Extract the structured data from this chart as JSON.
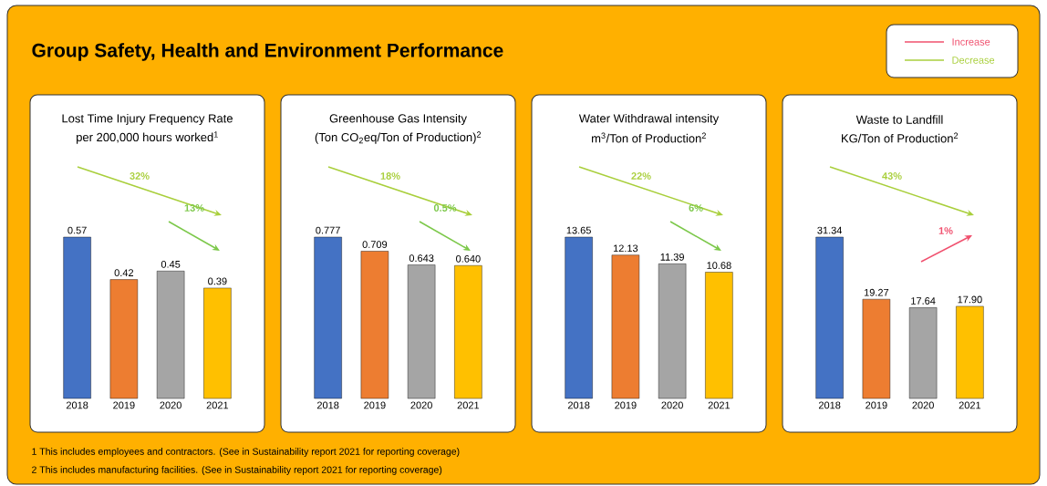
{
  "chart_data": [
    {
      "type": "other",
      "title": "Group Safety, Health and Environment Performance",
      "annotations": [
        "Increase",
        "Decrease",
        "1 This includes employees and contractors. (See in Sustainability report 2021 for reporting coverage)",
        "2 This includes manufacturing facilities. (See in Sustainability report 2021 for reporting coverage)"
      ]
    },
    {
      "type": "bar",
      "title": "Lost Time Injury Frequency Rate",
      "subtitle": "per 200,000 hours worked$^{1}$",
      "categories": [
        "2018",
        "2019",
        "2020",
        "2021"
      ],
      "values": [
        0.57,
        0.42,
        0.45,
        0.39
      ],
      "value_labels": [
        "0.57",
        "0.42",
        "0.45",
        "0.39"
      ],
      "colors": [
        "#4472c4",
        "#ed7d31",
        "#a5a5a5",
        "#ffc000"
      ],
      "annotations": [
        "32%",
        "13%"
      ]
    },
    {
      "type": "bar",
      "title": "Greenhouse Gas Intensity",
      "subtitle": "(Ton CO$_{2}$eq/Ton of Production)$^{2}$",
      "categories": [
        "2018",
        "2019",
        "2020",
        "2021"
      ],
      "values": [
        0.777,
        0.709,
        0.643,
        0.64
      ],
      "value_labels": [
        "0.777",
        "0.709",
        "0.643",
        "0.640"
      ],
      "colors": [
        "#4472c4",
        "#ed7d31",
        "#a5a5a5",
        "#ffc000"
      ],
      "annotations": [
        "18%",
        "0.5%"
      ]
    },
    {
      "type": "bar",
      "title": "Water Withdrawal intensity",
      "subtitle": "m$^{3}$/Ton of Production$^{2}$",
      "categories": [
        "2018",
        "2019",
        "2020",
        "2021"
      ],
      "values": [
        13.65,
        12.13,
        11.39,
        10.68
      ],
      "value_labels": [
        "13.65",
        "12.13",
        "11.39",
        "10.68"
      ],
      "colors": [
        "#4472c4",
        "#ed7d31",
        "#a5a5a5",
        "#ffc000"
      ],
      "annotations": [
        "22%",
        "6%"
      ]
    },
    {
      "type": "bar",
      "title": "Waste to Landfill",
      "subtitle": "KG/Ton of Production$^{2}$",
      "categories": [
        "2018",
        "2019",
        "2020",
        "2021"
      ],
      "values": [
        31.34,
        19.27,
        17.64,
        17.9
      ],
      "value_labels": [
        "31.34",
        "19.27",
        "17.64",
        "17.90"
      ],
      "colors": [
        "#4472c4",
        "#ed7d31",
        "#a5a5a5",
        "#ffc000"
      ],
      "annotations": [
        "43%",
        "1%"
      ]
    }
  ]
}
